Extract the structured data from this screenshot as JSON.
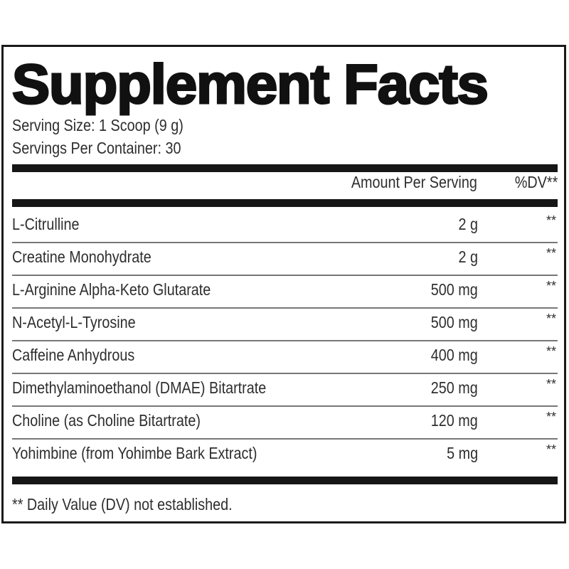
{
  "title": "Supplement Facts",
  "serving_size": "Serving Size: 1 Scoop (9 g)",
  "servings_per_container": "Servings Per Container: 30",
  "header": {
    "amount": "Amount Per Serving",
    "dv": "%DV**"
  },
  "rows": [
    {
      "name": "L-Citrulline",
      "amount": "2 g",
      "dv": "**"
    },
    {
      "name": "Creatine Monohydrate",
      "amount": "2 g",
      "dv": "**"
    },
    {
      "name": "L-Arginine Alpha-Keto Glutarate",
      "amount": "500 mg",
      "dv": "**"
    },
    {
      "name": "N-Acetyl-L-Tyrosine",
      "amount": "500 mg",
      "dv": "**"
    },
    {
      "name": "Caffeine Anhydrous",
      "amount": "400 mg",
      "dv": "**"
    },
    {
      "name": "Dimethylaminoethanol (DMAE) Bitartrate",
      "amount": "250 mg",
      "dv": "**"
    },
    {
      "name": "Choline (as Choline Bitartrate)",
      "amount": "120 mg",
      "dv": "**"
    },
    {
      "name": "Yohimbine (from Yohimbe Bark Extract)",
      "amount": "5 mg",
      "dv": "**"
    }
  ],
  "footnote": "** Daily Value (DV) not established."
}
